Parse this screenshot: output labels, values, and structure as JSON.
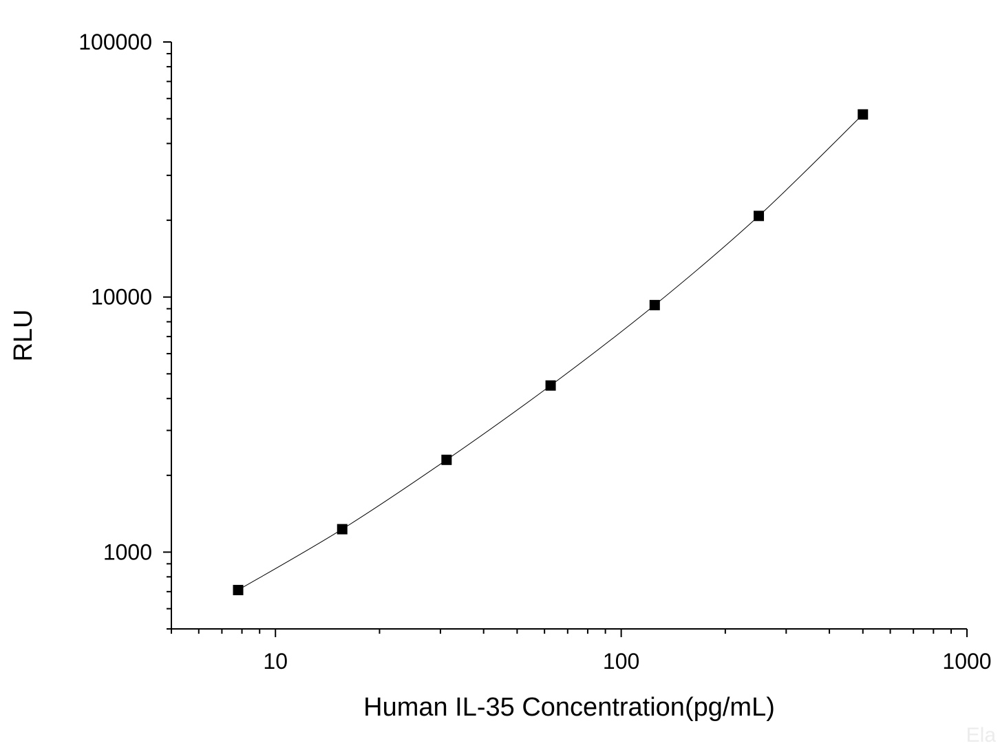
{
  "chart_data": {
    "type": "scatter",
    "xlabel": "Human IL-35 Concentration(pg/mL)",
    "ylabel": "RLU",
    "x_scale": "log",
    "y_scale": "log",
    "xlim": [
      5,
      1000
    ],
    "ylim": [
      500,
      100000
    ],
    "x_tick_labels": [
      "10",
      "100",
      "1000"
    ],
    "y_tick_labels": [
      "1000",
      "10000",
      "100000"
    ],
    "grid": false,
    "legend": "none",
    "marker": "square",
    "connecting_line": "smooth",
    "series": [
      {
        "x": [
          7.8,
          15.6,
          31.25,
          62.5,
          125,
          250,
          500
        ],
        "y": [
          710,
          1230,
          2300,
          4500,
          9300,
          20800,
          52000
        ]
      }
    ],
    "colors": {
      "marker": "#000000",
      "line": "#000000",
      "axis": "#000000"
    }
  },
  "watermark": "Ela"
}
